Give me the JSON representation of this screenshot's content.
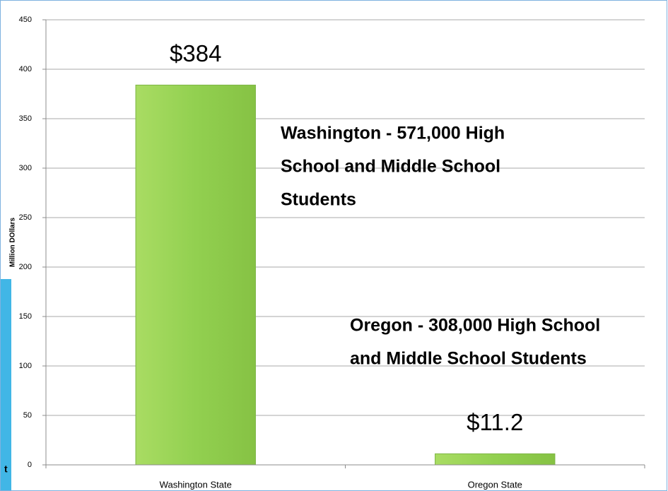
{
  "chart_data": {
    "type": "bar",
    "y_label": "Million DOllars",
    "categories": [
      "Washington State",
      "Oregon State"
    ],
    "values": [
      384,
      11.2
    ],
    "value_labels": [
      "$384",
      "$11.2"
    ],
    "color": "#92d050",
    "ylim": [
      0,
      450
    ],
    "yticks": [
      0,
      50,
      100,
      150,
      200,
      250,
      300,
      350,
      400,
      450
    ],
    "grid": true,
    "annotations": [
      [
        "Washington - 571,000 High",
        "School and Middle School",
        "Students"
      ],
      [
        "Oregon - 308,000 High School",
        "and Middle School Students"
      ]
    ],
    "side_panel_text": "t"
  }
}
